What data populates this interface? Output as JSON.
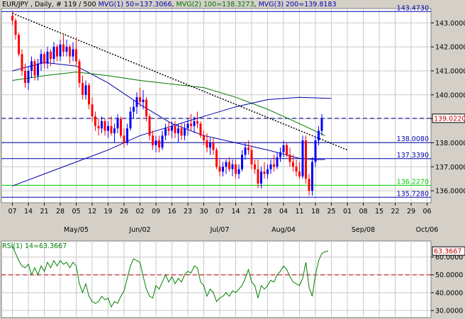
{
  "header": {
    "symbol": "EUR/JPY",
    "period": "Daily",
    "bars_info": "# 119 / 500",
    "mvg1": "MVG(1) 50=137.3066",
    "mvg2": "MVG(2) 100=138.3273",
    "mvg3": "MVG(3) 200=139.8183"
  },
  "rsi_header": "RSI(1) 14=63.3667",
  "colors": {
    "background": "#ffffff",
    "frame": "#d4d0c8",
    "grid": "#c8c8c8",
    "candle_up": "#0000ff",
    "candle_down": "#ff0000",
    "mvg50": "#0000aa",
    "mvg100": "#007700",
    "mvg200": "#0000aa",
    "support_line": "#0000aa",
    "green_line": "#00cc00",
    "trendline": "#000000",
    "rsi_line": "#008000",
    "rsi_level": "#cc0000"
  },
  "chart_data": [
    {
      "type": "candlestick",
      "name": "price",
      "ylim": [
        135.5,
        143.6
      ],
      "y_ticks": [
        136,
        137,
        138,
        139,
        140,
        141,
        142,
        143
      ],
      "y_tick_labels": [
        "136.0000",
        "137.0000",
        "138.0000",
        "139.0000",
        "140.0000",
        "141.0000",
        "142.0000",
        "143.0000"
      ],
      "x_day_ticks": [
        "07",
        "14",
        "21",
        "28",
        "05",
        "12",
        "19",
        "26",
        "02",
        "09",
        "16",
        "23",
        "30",
        "07",
        "14",
        "21",
        "28",
        "04",
        "11",
        "18",
        "25",
        "01",
        "08",
        "15",
        "22",
        "29",
        "06"
      ],
      "x_month_labels": [
        {
          "label": "May/05",
          "tick_index": 4
        },
        {
          "label": "Jun/02",
          "tick_index": 8
        },
        {
          "label": "Jul/07",
          "tick_index": 13
        },
        {
          "label": "Aug/04",
          "tick_index": 17
        },
        {
          "label": "Sep/08",
          "tick_index": 22
        },
        {
          "label": "Oct/06",
          "tick_index": 26
        }
      ],
      "ticks_per_week": 5,
      "candles": [
        [
          143.3,
          143.45,
          142.9,
          143.1
        ],
        [
          143.1,
          143.2,
          142.3,
          142.5
        ],
        [
          142.5,
          142.6,
          141.6,
          141.7
        ],
        [
          141.7,
          141.9,
          140.8,
          141.0
        ],
        [
          141.0,
          141.3,
          140.3,
          140.5
        ],
        [
          140.5,
          141.2,
          140.2,
          141.0
        ],
        [
          141.0,
          141.6,
          140.7,
          141.4
        ],
        [
          141.4,
          141.5,
          140.6,
          140.8
        ],
        [
          140.8,
          141.5,
          140.6,
          141.3
        ],
        [
          141.3,
          141.9,
          141.0,
          141.7
        ],
        [
          141.7,
          141.8,
          141.1,
          141.3
        ],
        [
          141.3,
          142.0,
          141.1,
          141.8
        ],
        [
          141.8,
          141.9,
          141.2,
          141.5
        ],
        [
          141.5,
          142.2,
          141.3,
          142.0
        ],
        [
          142.0,
          142.1,
          141.4,
          141.6
        ],
        [
          141.6,
          142.3,
          141.4,
          142.1
        ],
        [
          142.1,
          142.5,
          141.6,
          141.8
        ],
        [
          141.8,
          142.3,
          141.6,
          142.0
        ],
        [
          142.0,
          142.1,
          141.3,
          141.6
        ],
        [
          141.6,
          142.2,
          141.4,
          141.9
        ],
        [
          141.9,
          142.4,
          141.2,
          141.4
        ],
        [
          141.4,
          141.5,
          140.3,
          140.5
        ],
        [
          140.5,
          140.8,
          139.8,
          140.0
        ],
        [
          140.0,
          140.6,
          139.8,
          140.4
        ],
        [
          140.4,
          140.5,
          139.4,
          139.6
        ],
        [
          139.6,
          139.9,
          138.9,
          139.1
        ],
        [
          139.1,
          139.3,
          138.5,
          138.7
        ],
        [
          138.7,
          139.0,
          138.3,
          138.6
        ],
        [
          138.6,
          139.1,
          138.4,
          138.9
        ],
        [
          138.9,
          139.0,
          138.3,
          138.5
        ],
        [
          138.5,
          138.9,
          138.2,
          138.7
        ],
        [
          138.7,
          139.1,
          138.3,
          138.4
        ],
        [
          138.4,
          138.8,
          138.0,
          138.6
        ],
        [
          138.6,
          139.2,
          138.4,
          139.0
        ],
        [
          139.0,
          139.1,
          138.2,
          138.3
        ],
        [
          138.3,
          138.6,
          137.8,
          138.0
        ],
        [
          138.0,
          138.8,
          137.9,
          138.6
        ],
        [
          138.6,
          139.5,
          138.5,
          139.3
        ],
        [
          139.3,
          139.8,
          139.0,
          139.5
        ],
        [
          139.5,
          140.1,
          139.2,
          139.9
        ],
        [
          139.9,
          140.3,
          139.5,
          139.7
        ],
        [
          139.7,
          140.2,
          139.4,
          139.8
        ],
        [
          139.8,
          139.9,
          138.9,
          139.1
        ],
        [
          139.1,
          139.2,
          138.1,
          138.3
        ],
        [
          138.3,
          138.5,
          137.7,
          137.9
        ],
        [
          137.9,
          138.3,
          137.6,
          138.1
        ],
        [
          138.1,
          138.3,
          137.6,
          137.8
        ],
        [
          137.8,
          138.5,
          137.7,
          138.3
        ],
        [
          138.3,
          138.8,
          138.1,
          138.6
        ],
        [
          138.6,
          138.9,
          138.3,
          138.5
        ],
        [
          138.5,
          138.9,
          138.2,
          138.7
        ],
        [
          138.7,
          138.9,
          138.2,
          138.4
        ],
        [
          138.4,
          138.8,
          138.0,
          138.6
        ],
        [
          138.6,
          138.8,
          138.1,
          138.3
        ],
        [
          138.3,
          138.8,
          138.1,
          138.6
        ],
        [
          138.6,
          139.0,
          138.3,
          138.8
        ],
        [
          138.8,
          139.2,
          138.5,
          138.7
        ],
        [
          138.7,
          139.1,
          138.4,
          138.9
        ],
        [
          138.9,
          139.3,
          138.6,
          138.8
        ],
        [
          138.8,
          138.9,
          138.2,
          138.3
        ],
        [
          138.3,
          138.5,
          137.9,
          138.1
        ],
        [
          138.1,
          138.4,
          137.6,
          137.8
        ],
        [
          137.8,
          138.2,
          137.5,
          138.0
        ],
        [
          138.0,
          138.2,
          137.5,
          137.7
        ],
        [
          137.7,
          137.8,
          136.9,
          137.0
        ],
        [
          137.0,
          137.3,
          136.6,
          136.8
        ],
        [
          136.8,
          137.2,
          136.6,
          137.0
        ],
        [
          137.0,
          137.3,
          136.7,
          137.2
        ],
        [
          137.2,
          137.4,
          136.8,
          136.9
        ],
        [
          136.9,
          137.3,
          136.6,
          137.1
        ],
        [
          137.1,
          137.3,
          136.5,
          136.7
        ],
        [
          136.7,
          137.1,
          136.5,
          136.9
        ],
        [
          136.9,
          137.7,
          136.8,
          137.5
        ],
        [
          137.5,
          138.0,
          137.3,
          137.8
        ],
        [
          137.8,
          138.1,
          137.5,
          137.7
        ],
        [
          137.7,
          137.9,
          136.9,
          137.1
        ],
        [
          137.1,
          137.3,
          136.7,
          136.9
        ],
        [
          136.9,
          137.3,
          136.1,
          136.3
        ],
        [
          136.3,
          137.0,
          136.1,
          136.8
        ],
        [
          136.8,
          137.2,
          136.5,
          136.7
        ],
        [
          136.7,
          137.1,
          136.5,
          136.9
        ],
        [
          136.9,
          137.3,
          136.7,
          137.1
        ],
        [
          137.1,
          137.5,
          136.8,
          137.0
        ],
        [
          137.0,
          137.6,
          136.9,
          137.4
        ],
        [
          137.4,
          137.8,
          137.2,
          137.6
        ],
        [
          137.6,
          138.1,
          137.4,
          137.9
        ],
        [
          137.9,
          138.0,
          137.4,
          137.5
        ],
        [
          137.5,
          137.8,
          137.0,
          137.2
        ],
        [
          137.2,
          137.5,
          136.8,
          137.0
        ],
        [
          137.0,
          137.3,
          136.6,
          136.8
        ],
        [
          136.8,
          137.2,
          136.5,
          136.6
        ],
        [
          136.6,
          138.3,
          136.5,
          138.1
        ],
        [
          138.1,
          138.3,
          136.3,
          136.5
        ],
        [
          136.5,
          136.7,
          135.8,
          136.0
        ],
        [
          136.0,
          137.4,
          135.8,
          137.2
        ],
        [
          137.2,
          138.3,
          137.0,
          138.1
        ],
        [
          138.1,
          138.7,
          137.9,
          138.5
        ],
        [
          138.5,
          139.2,
          138.3,
          139.0
        ]
      ],
      "moving_averages": [
        {
          "label": "MVG 50",
          "points": [
            [
              0,
              141.0
            ],
            [
              10,
              141.35
            ],
            [
              20,
              141.2
            ],
            [
              30,
              140.5
            ],
            [
              40,
              139.6
            ],
            [
              50,
              138.8
            ],
            [
              60,
              138.3
            ],
            [
              70,
              138.0
            ],
            [
              80,
              137.7
            ],
            [
              90,
              137.35
            ],
            [
              95,
              137.3
            ],
            [
              98,
              137.3
            ]
          ]
        },
        {
          "label": "MVG 100",
          "points": [
            [
              0,
              140.6
            ],
            [
              10,
              140.8
            ],
            [
              20,
              140.95
            ],
            [
              30,
              140.8
            ],
            [
              40,
              140.6
            ],
            [
              50,
              140.45
            ],
            [
              60,
              140.3
            ],
            [
              70,
              139.9
            ],
            [
              80,
              139.4
            ],
            [
              90,
              138.8
            ],
            [
              98,
              138.3
            ]
          ]
        },
        {
          "label": "MVG 200",
          "points": [
            [
              0,
              136.2
            ],
            [
              10,
              136.7
            ],
            [
              20,
              137.2
            ],
            [
              30,
              137.7
            ],
            [
              40,
              138.3
            ],
            [
              50,
              138.7
            ],
            [
              60,
              139.1
            ],
            [
              70,
              139.5
            ],
            [
              80,
              139.8
            ],
            [
              90,
              139.9
            ],
            [
              100,
              139.85
            ]
          ]
        }
      ],
      "trendline": [
        [
          0,
          143.4
        ],
        [
          105,
          137.7
        ]
      ],
      "horizontal_levels": [
        {
          "label": "143.4730",
          "value": 143.473,
          "style": "solid"
        },
        {
          "label": "139.0220",
          "value": 139.022,
          "style": "dashed"
        },
        {
          "label": "138.0080",
          "value": 138.008,
          "style": "solid"
        },
        {
          "label": "137.3390",
          "value": 137.339,
          "style": "solid"
        },
        {
          "label": "136.2270",
          "value": 136.227,
          "style": "green"
        },
        {
          "label": "135.7280",
          "value": 135.728,
          "style": "solid"
        }
      ]
    },
    {
      "type": "line",
      "name": "RSI(1) 14",
      "ylim": [
        26,
        69
      ],
      "y_ticks": [
        30,
        40,
        50,
        60
      ],
      "y_tick_labels": [
        "30.0000",
        "40.0000",
        "50.0000",
        "60.0000"
      ],
      "last_label": "63.3667",
      "last_value": 63.3667,
      "level": 50,
      "values": [
        66,
        62,
        58,
        55,
        54,
        56,
        50,
        54,
        50,
        55,
        52,
        57,
        54,
        58,
        55,
        58,
        56,
        57,
        54,
        57,
        55,
        45,
        40,
        45,
        38,
        35,
        34,
        35,
        38,
        36,
        37,
        32,
        35,
        34,
        38,
        41,
        48,
        55,
        59,
        58,
        57,
        49,
        42,
        38,
        37,
        44,
        42,
        46,
        50,
        46,
        49,
        45,
        48,
        46,
        50,
        52,
        51,
        55,
        54,
        46,
        44,
        38,
        42,
        40,
        35,
        37,
        38,
        40,
        38,
        41,
        40,
        42,
        44,
        48,
        53,
        46,
        44,
        37,
        44,
        42,
        44,
        47,
        46,
        50,
        52,
        55,
        53,
        49,
        46,
        45,
        44,
        48,
        57,
        43,
        38,
        50,
        58,
        62,
        63,
        63.4
      ]
    }
  ]
}
